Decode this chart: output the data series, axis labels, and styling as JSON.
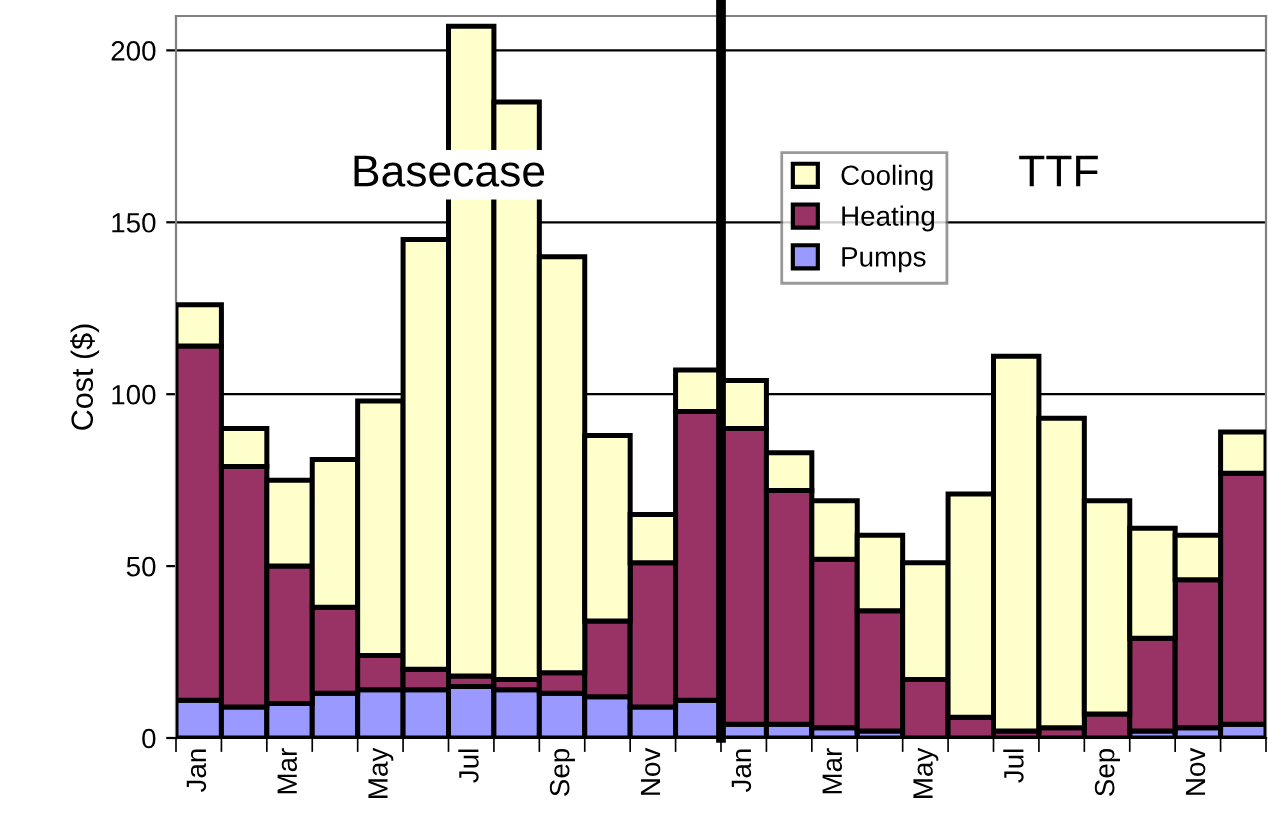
{
  "chart_data": {
    "type": "bar",
    "stacked": true,
    "ylabel": "Cost ($)",
    "categories": [
      "Jan",
      null,
      "Mar",
      null,
      "May",
      null,
      "Jul",
      null,
      "Sep",
      null,
      "Nov",
      null,
      "Jan",
      null,
      "Mar",
      null,
      "May",
      null,
      "Jul",
      null,
      "Sep",
      null,
      "Nov",
      null
    ],
    "series": [
      {
        "name": "Pumps",
        "color": "#9999ff",
        "values": [
          11,
          9,
          10,
          13,
          14,
          14,
          15,
          14,
          13,
          12,
          9,
          11,
          4,
          4,
          3,
          2,
          null,
          null,
          null,
          null,
          null,
          2,
          3,
          4
        ]
      },
      {
        "name": "Heating",
        "color": "#993366",
        "values": [
          103,
          70,
          40,
          25,
          10,
          6,
          3,
          3,
          6,
          22,
          42,
          84,
          86,
          68,
          49,
          35,
          17,
          6,
          2,
          3,
          7,
          27,
          43,
          73
        ]
      },
      {
        "name": "Cooling",
        "color": "#ffffcc",
        "values": [
          12,
          11,
          25,
          43,
          74,
          125,
          189,
          168,
          121,
          54,
          14,
          12,
          14,
          11,
          17,
          22,
          34,
          65,
          109,
          90,
          62,
          32,
          13,
          12
        ]
      }
    ],
    "ylim": [
      0,
      210
    ],
    "yticks": [
      0,
      50,
      100,
      150,
      200
    ],
    "grid": "y",
    "legend": "top right",
    "annotations": [
      "Basecase",
      "TTF"
    ]
  }
}
